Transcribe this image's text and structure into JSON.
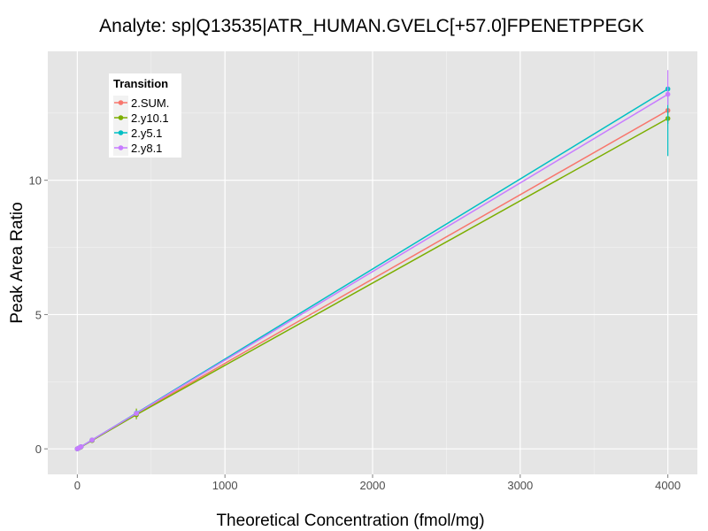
{
  "chart_data": {
    "type": "line",
    "title": "Analyte: sp|Q13535|ATR_HUMAN.GVELC[+57.0]FPENETPPEGK",
    "xlabel": "Theoretical Concentration (fmol/mg)",
    "ylabel": "Peak Area Ratio",
    "xlim": [
      -200,
      4200
    ],
    "ylim": [
      -0.95,
      14.8
    ],
    "x_ticks": [
      0,
      1000,
      2000,
      3000,
      4000
    ],
    "y_ticks": [
      0,
      5,
      10
    ],
    "grid": true,
    "legend": {
      "title": "Transition",
      "position": "top-left"
    },
    "x": [
      0,
      10,
      25,
      100,
      400,
      4000
    ],
    "series": [
      {
        "name": "2.SUM.",
        "color": "#F8766D",
        "values": [
          0.0,
          0.03,
          0.08,
          0.32,
          1.3,
          12.6
        ],
        "error": [
          [
            0,
            0
          ],
          [
            0,
            0
          ],
          [
            0,
            0
          ],
          [
            0,
            0
          ],
          [
            1.25,
            1.35
          ],
          [
            12.5,
            12.7
          ]
        ]
      },
      {
        "name": "2.y10.1",
        "color": "#7CAE00",
        "values": [
          0.0,
          0.03,
          0.07,
          0.31,
          1.27,
          12.3
        ],
        "error": [
          [
            0,
            0
          ],
          [
            0,
            0
          ],
          [
            0,
            0
          ],
          [
            0,
            0
          ],
          [
            1.1,
            1.5
          ],
          [
            12.1,
            12.55
          ]
        ]
      },
      {
        "name": "2.y5.1",
        "color": "#00BFC4",
        "values": [
          0.0,
          0.03,
          0.08,
          0.33,
          1.33,
          13.4
        ],
        "error": [
          [
            0,
            0
          ],
          [
            0,
            0
          ],
          [
            0,
            0
          ],
          [
            0,
            0
          ],
          [
            1.25,
            1.4
          ],
          [
            10.9,
            13.5
          ]
        ]
      },
      {
        "name": "2.y8.1",
        "color": "#C77CFF",
        "values": [
          0.0,
          0.03,
          0.08,
          0.33,
          1.32,
          13.2
        ],
        "error": [
          [
            0,
            0
          ],
          [
            0,
            0
          ],
          [
            0,
            0
          ],
          [
            0,
            0
          ],
          [
            1.25,
            1.4
          ],
          [
            12.8,
            14.1
          ]
        ]
      }
    ]
  }
}
